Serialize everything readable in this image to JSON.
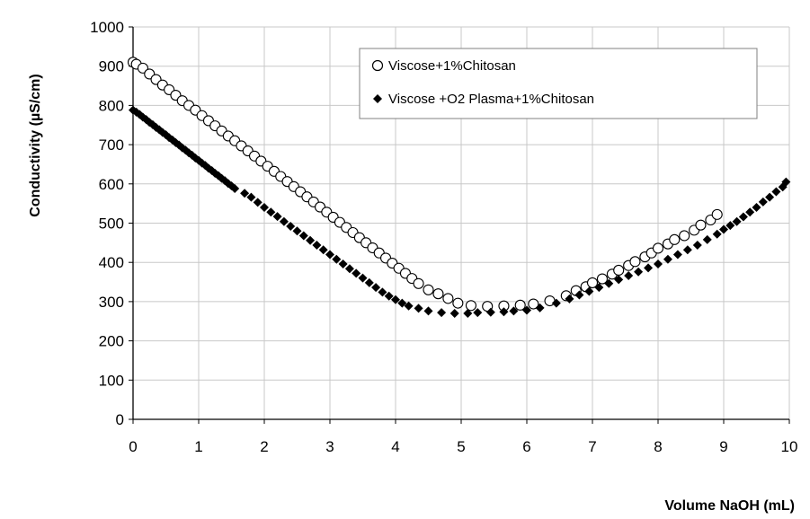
{
  "chart_data": {
    "type": "scatter",
    "xlabel": "Volume NaOH (mL)",
    "ylabel": "Conductivity (µS/cm)",
    "xlim": [
      0,
      10
    ],
    "ylim": [
      0,
      1000
    ],
    "xticks": [
      0,
      1,
      2,
      3,
      4,
      5,
      6,
      7,
      8,
      9,
      10
    ],
    "yticks": [
      0,
      100,
      200,
      300,
      400,
      500,
      600,
      700,
      800,
      900,
      1000
    ],
    "grid": true,
    "legend_position": "top-right",
    "series": [
      {
        "name": "Viscose+1%Chitosan",
        "marker": "open-circle",
        "color": "#000000",
        "points": [
          [
            0.0,
            910
          ],
          [
            0.05,
            905
          ],
          [
            0.15,
            895
          ],
          [
            0.25,
            880
          ],
          [
            0.35,
            866
          ],
          [
            0.45,
            852
          ],
          [
            0.55,
            840
          ],
          [
            0.65,
            826
          ],
          [
            0.75,
            812
          ],
          [
            0.85,
            800
          ],
          [
            0.95,
            788
          ],
          [
            1.05,
            774
          ],
          [
            1.15,
            761
          ],
          [
            1.25,
            748
          ],
          [
            1.35,
            735
          ],
          [
            1.45,
            722
          ],
          [
            1.55,
            710
          ],
          [
            1.65,
            697
          ],
          [
            1.75,
            684
          ],
          [
            1.85,
            671
          ],
          [
            1.95,
            658
          ],
          [
            2.05,
            645
          ],
          [
            2.15,
            632
          ],
          [
            2.25,
            619
          ],
          [
            2.35,
            606
          ],
          [
            2.45,
            593
          ],
          [
            2.55,
            580
          ],
          [
            2.65,
            567
          ],
          [
            2.75,
            554
          ],
          [
            2.85,
            541
          ],
          [
            2.95,
            528
          ],
          [
            3.05,
            515
          ],
          [
            3.15,
            502
          ],
          [
            3.25,
            489
          ],
          [
            3.35,
            476
          ],
          [
            3.45,
            463
          ],
          [
            3.55,
            450
          ],
          [
            3.65,
            437
          ],
          [
            3.75,
            424
          ],
          [
            3.85,
            411
          ],
          [
            3.95,
            398
          ],
          [
            4.05,
            385
          ],
          [
            4.15,
            372
          ],
          [
            4.25,
            359
          ],
          [
            4.35,
            346
          ],
          [
            4.5,
            330
          ],
          [
            4.65,
            320
          ],
          [
            4.8,
            308
          ],
          [
            4.95,
            296
          ],
          [
            5.15,
            290
          ],
          [
            5.4,
            288
          ],
          [
            5.65,
            289
          ],
          [
            5.9,
            291
          ],
          [
            6.1,
            294
          ],
          [
            6.35,
            302
          ],
          [
            6.6,
            315
          ],
          [
            6.75,
            328
          ],
          [
            6.9,
            338
          ],
          [
            7.0,
            348
          ],
          [
            7.15,
            358
          ],
          [
            7.3,
            370
          ],
          [
            7.4,
            380
          ],
          [
            7.55,
            392
          ],
          [
            7.65,
            402
          ],
          [
            7.8,
            414
          ],
          [
            7.9,
            424
          ],
          [
            8.0,
            436
          ],
          [
            8.15,
            447
          ],
          [
            8.25,
            458
          ],
          [
            8.4,
            468
          ],
          [
            8.55,
            482
          ],
          [
            8.65,
            495
          ],
          [
            8.8,
            508
          ],
          [
            8.9,
            522
          ]
        ]
      },
      {
        "name": "Viscose +O2 Plasma+1%Chitosan",
        "marker": "filled-diamond",
        "color": "#000000",
        "points": [
          [
            0.0,
            788
          ],
          [
            0.05,
            783
          ],
          [
            0.1,
            777
          ],
          [
            0.15,
            770
          ],
          [
            0.2,
            764
          ],
          [
            0.25,
            757
          ],
          [
            0.3,
            751
          ],
          [
            0.35,
            744
          ],
          [
            0.4,
            738
          ],
          [
            0.45,
            731
          ],
          [
            0.5,
            725
          ],
          [
            0.55,
            718
          ],
          [
            0.6,
            712
          ],
          [
            0.65,
            705
          ],
          [
            0.7,
            699
          ],
          [
            0.75,
            692
          ],
          [
            0.8,
            686
          ],
          [
            0.85,
            679
          ],
          [
            0.9,
            673
          ],
          [
            0.95,
            666
          ],
          [
            1.0,
            660
          ],
          [
            1.05,
            653
          ],
          [
            1.1,
            647
          ],
          [
            1.15,
            640
          ],
          [
            1.2,
            634
          ],
          [
            1.25,
            627
          ],
          [
            1.3,
            621
          ],
          [
            1.35,
            614
          ],
          [
            1.4,
            608
          ],
          [
            1.45,
            601
          ],
          [
            1.5,
            595
          ],
          [
            1.55,
            588
          ],
          [
            1.7,
            576
          ],
          [
            1.8,
            566
          ],
          [
            1.9,
            553
          ],
          [
            2.0,
            540
          ],
          [
            2.1,
            528
          ],
          [
            2.2,
            517
          ],
          [
            2.3,
            504
          ],
          [
            2.4,
            492
          ],
          [
            2.5,
            480
          ],
          [
            2.6,
            468
          ],
          [
            2.7,
            456
          ],
          [
            2.8,
            444
          ],
          [
            2.9,
            432
          ],
          [
            3.0,
            420
          ],
          [
            3.1,
            408
          ],
          [
            3.2,
            396
          ],
          [
            3.3,
            384
          ],
          [
            3.4,
            372
          ],
          [
            3.5,
            360
          ],
          [
            3.6,
            348
          ],
          [
            3.7,
            336
          ],
          [
            3.8,
            324
          ],
          [
            3.9,
            314
          ],
          [
            4.0,
            305
          ],
          [
            4.1,
            296
          ],
          [
            4.2,
            289
          ],
          [
            4.35,
            283
          ],
          [
            4.5,
            276
          ],
          [
            4.7,
            272
          ],
          [
            4.9,
            270
          ],
          [
            5.1,
            270
          ],
          [
            5.25,
            272
          ],
          [
            5.45,
            273
          ],
          [
            5.65,
            274
          ],
          [
            5.8,
            276
          ],
          [
            6.0,
            278
          ],
          [
            6.2,
            284
          ],
          [
            6.45,
            296
          ],
          [
            6.65,
            307
          ],
          [
            6.8,
            317
          ],
          [
            6.95,
            326
          ],
          [
            7.1,
            336
          ],
          [
            7.25,
            346
          ],
          [
            7.4,
            356
          ],
          [
            7.55,
            366
          ],
          [
            7.7,
            376
          ],
          [
            7.85,
            386
          ],
          [
            8.0,
            396
          ],
          [
            8.15,
            408
          ],
          [
            8.3,
            420
          ],
          [
            8.45,
            432
          ],
          [
            8.6,
            444
          ],
          [
            8.75,
            458
          ],
          [
            8.9,
            472
          ],
          [
            9.0,
            484
          ],
          [
            9.1,
            494
          ],
          [
            9.2,
            504
          ],
          [
            9.3,
            516
          ],
          [
            9.4,
            528
          ],
          [
            9.5,
            540
          ],
          [
            9.6,
            554
          ],
          [
            9.7,
            566
          ],
          [
            9.8,
            580
          ],
          [
            9.9,
            592
          ],
          [
            9.95,
            605
          ]
        ]
      }
    ]
  }
}
